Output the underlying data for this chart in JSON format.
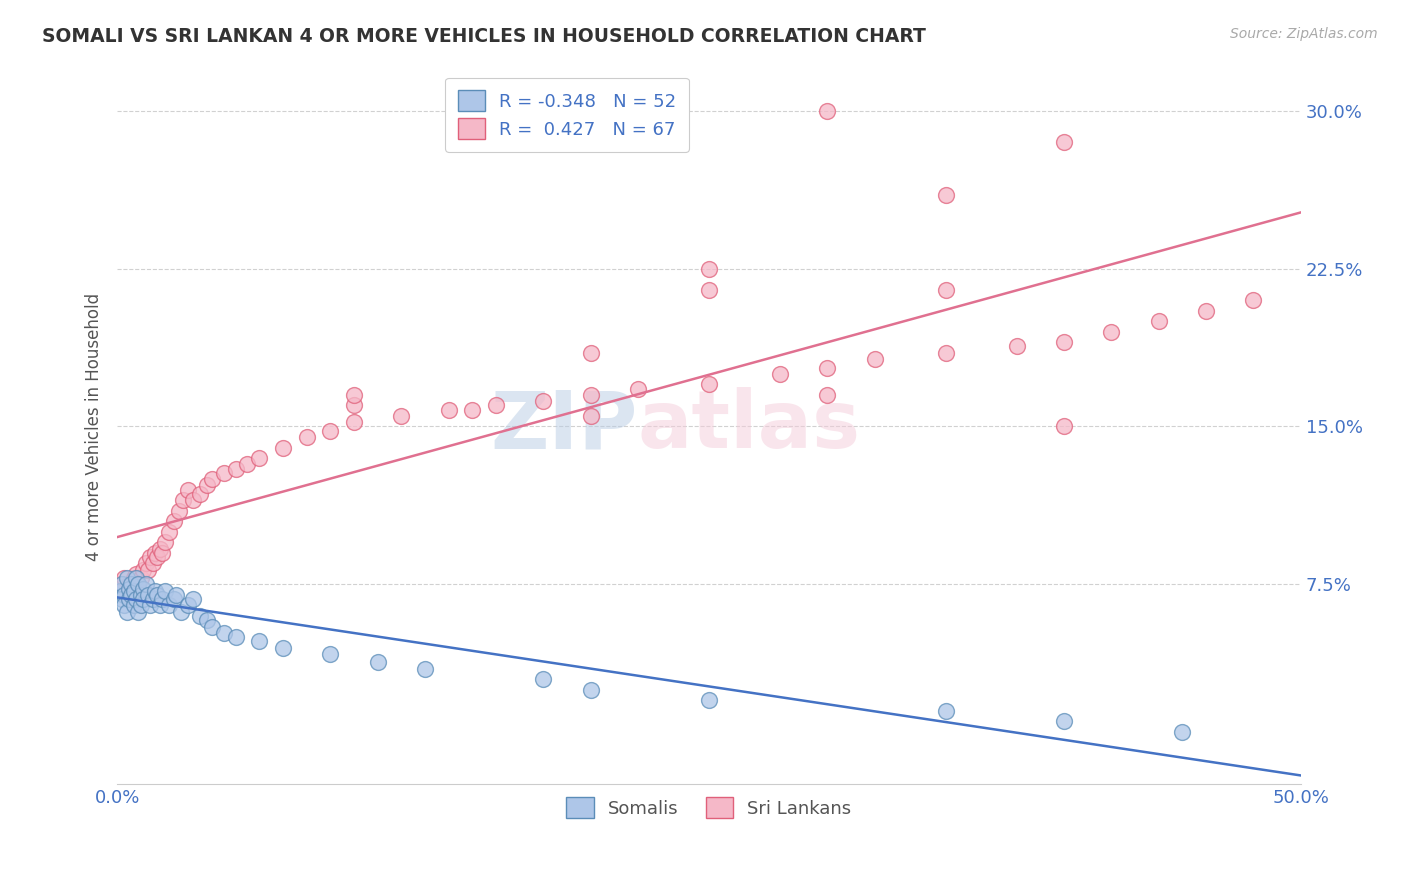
{
  "title": "SOMALI VS SRI LANKAN 4 OR MORE VEHICLES IN HOUSEHOLD CORRELATION CHART",
  "source": "Source: ZipAtlas.com",
  "ylabel": "4 or more Vehicles in Household",
  "xlim": [
    0.0,
    0.5
  ],
  "ylim": [
    -0.02,
    0.32
  ],
  "ytick_values": [
    0.075,
    0.15,
    0.225,
    0.3
  ],
  "ytick_labels": [
    "7.5%",
    "15.0%",
    "22.5%",
    "30.0%"
  ],
  "xtick_values": [
    0.0,
    0.5
  ],
  "xtick_labels": [
    "0.0%",
    "50.0%"
  ],
  "somali_R": -0.348,
  "somali_N": 52,
  "srilanka_R": 0.427,
  "srilanka_N": 67,
  "somali_color": "#aec6e8",
  "srilanka_color": "#f5b8c8",
  "somali_edge_color": "#5b8db8",
  "srilanka_edge_color": "#e0607a",
  "somali_line_color": "#4472c4",
  "srilanka_line_color": "#e07090",
  "watermark_color": "#c8d8e8",
  "tick_color": "#4472c4",
  "legend_entries": [
    "Somalis",
    "Sri Lankans"
  ],
  "somali_x": [
    0.001,
    0.002,
    0.002,
    0.003,
    0.003,
    0.004,
    0.004,
    0.005,
    0.005,
    0.006,
    0.006,
    0.007,
    0.007,
    0.008,
    0.008,
    0.009,
    0.009,
    0.01,
    0.01,
    0.011,
    0.011,
    0.012,
    0.013,
    0.014,
    0.015,
    0.016,
    0.017,
    0.018,
    0.019,
    0.02,
    0.022,
    0.024,
    0.025,
    0.027,
    0.03,
    0.032,
    0.035,
    0.038,
    0.04,
    0.045,
    0.05,
    0.06,
    0.07,
    0.09,
    0.11,
    0.13,
    0.18,
    0.2,
    0.25,
    0.35,
    0.4,
    0.45
  ],
  "somali_y": [
    0.072,
    0.075,
    0.068,
    0.07,
    0.065,
    0.078,
    0.062,
    0.073,
    0.068,
    0.075,
    0.07,
    0.065,
    0.072,
    0.068,
    0.078,
    0.075,
    0.062,
    0.07,
    0.065,
    0.073,
    0.068,
    0.075,
    0.07,
    0.065,
    0.068,
    0.072,
    0.07,
    0.065,
    0.068,
    0.072,
    0.065,
    0.068,
    0.07,
    0.062,
    0.065,
    0.068,
    0.06,
    0.058,
    0.055,
    0.052,
    0.05,
    0.048,
    0.045,
    0.042,
    0.038,
    0.035,
    0.03,
    0.025,
    0.02,
    0.015,
    0.01,
    0.005
  ],
  "srilanka_x": [
    0.001,
    0.002,
    0.003,
    0.004,
    0.005,
    0.006,
    0.007,
    0.008,
    0.009,
    0.01,
    0.011,
    0.012,
    0.013,
    0.014,
    0.015,
    0.016,
    0.017,
    0.018,
    0.019,
    0.02,
    0.022,
    0.024,
    0.026,
    0.028,
    0.03,
    0.032,
    0.035,
    0.038,
    0.04,
    0.045,
    0.05,
    0.055,
    0.06,
    0.07,
    0.08,
    0.09,
    0.1,
    0.12,
    0.14,
    0.16,
    0.18,
    0.2,
    0.22,
    0.25,
    0.28,
    0.3,
    0.32,
    0.35,
    0.38,
    0.4,
    0.42,
    0.44,
    0.46,
    0.48,
    0.1,
    0.15,
    0.2,
    0.3,
    0.35,
    0.4,
    0.25,
    0.2,
    0.1,
    0.35,
    0.4,
    0.3,
    0.25
  ],
  "srilanka_y": [
    0.075,
    0.072,
    0.078,
    0.07,
    0.075,
    0.073,
    0.078,
    0.08,
    0.075,
    0.078,
    0.082,
    0.085,
    0.082,
    0.088,
    0.085,
    0.09,
    0.088,
    0.092,
    0.09,
    0.095,
    0.1,
    0.105,
    0.11,
    0.115,
    0.12,
    0.115,
    0.118,
    0.122,
    0.125,
    0.128,
    0.13,
    0.132,
    0.135,
    0.14,
    0.145,
    0.148,
    0.152,
    0.155,
    0.158,
    0.16,
    0.162,
    0.165,
    0.168,
    0.17,
    0.175,
    0.178,
    0.182,
    0.185,
    0.188,
    0.19,
    0.195,
    0.2,
    0.205,
    0.21,
    0.16,
    0.158,
    0.155,
    0.165,
    0.215,
    0.15,
    0.225,
    0.185,
    0.165,
    0.26,
    0.285,
    0.3,
    0.215
  ]
}
